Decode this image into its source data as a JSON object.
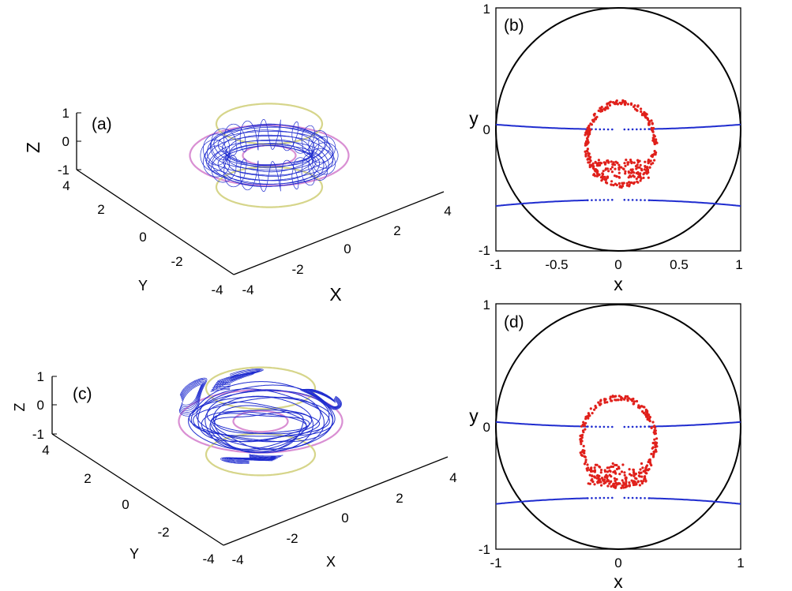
{
  "colors": {
    "trajectory": "#1f2ccf",
    "torus_yellow": "#d6d58a",
    "torus_pink": "#d98fd3",
    "section_points": "#e0201b",
    "section_curves": "#1f2ccf",
    "frame": "#000000"
  },
  "chart_data": [
    {
      "id": "a",
      "type": "line",
      "projection": "3d",
      "panel_label": "(a)",
      "xlabel": "X",
      "ylabel": "Y",
      "zlabel": "Z",
      "xlim": [
        -4,
        4
      ],
      "ylim": [
        -4,
        4
      ],
      "zlim": [
        -1,
        1
      ],
      "x_ticks": [
        "-4",
        "-2",
        "0",
        "2",
        "4"
      ],
      "y_ticks": [
        "-4",
        "-2",
        "0",
        "2",
        "4"
      ],
      "z_ticks": [
        "-1",
        "0",
        "1"
      ],
      "series": [
        {
          "role": "torus-guide-outer-ring",
          "color": "torus_pink",
          "radius": 3,
          "z": 0
        },
        {
          "role": "torus-guide-inner-ring",
          "color": "torus_pink",
          "radius": 1,
          "z": 0
        },
        {
          "role": "torus-guide-top-ring",
          "color": "torus_yellow",
          "radius": 2,
          "z": 1
        },
        {
          "role": "torus-guide-bottom-ring",
          "color": "torus_yellow",
          "radius": 2,
          "z": -1
        },
        {
          "role": "trajectory",
          "color": "trajectory",
          "tube_radius": 0.6,
          "winding": 22
        }
      ]
    },
    {
      "id": "b",
      "type": "scatter",
      "panel_label": "(b)",
      "xlabel": "x",
      "ylabel": "y",
      "xlim": [
        -1,
        1
      ],
      "ylim": [
        -1,
        1
      ],
      "x_ticks": [
        "-1",
        "-0.5",
        "0",
        "0.5",
        "1"
      ],
      "y_ticks": [
        "-1",
        "0",
        "1"
      ],
      "circle": {
        "center": [
          0,
          0
        ],
        "radius": 1
      },
      "blue_curves": [
        {
          "y_at_center": 0.0,
          "y_at_edge": 0.04
        },
        {
          "y_at_center": -0.58,
          "y_at_edge": -0.63
        }
      ],
      "red_ring": {
        "center": [
          0.02,
          -0.12
        ],
        "rx": 0.28,
        "ry": 0.34,
        "dense_bottom_band": [
          -0.25,
          -0.4
        ]
      }
    },
    {
      "id": "c",
      "type": "line",
      "projection": "3d",
      "panel_label": "(c)",
      "xlabel": "X",
      "ylabel": "Y",
      "zlabel": "Z",
      "xlim": [
        -4,
        4
      ],
      "ylim": [
        -4,
        4
      ],
      "zlim": [
        -1,
        1
      ],
      "x_ticks": [
        "-4",
        "-2",
        "0",
        "2",
        "4"
      ],
      "y_ticks": [
        "-4",
        "-2",
        "0",
        "2",
        "4"
      ],
      "z_ticks": [
        "-1",
        "0",
        "1"
      ],
      "series": [
        {
          "role": "torus-guide-outer-ring",
          "color": "torus_pink",
          "radius": 3,
          "z": 0
        },
        {
          "role": "torus-guide-inner-ring",
          "color": "torus_pink",
          "radius": 1,
          "z": 0
        },
        {
          "role": "torus-guide-top-ring",
          "color": "torus_yellow",
          "radius": 2,
          "z": 1
        },
        {
          "role": "torus-guide-bottom-ring",
          "color": "torus_yellow",
          "radius": 2,
          "z": -1
        },
        {
          "role": "trajectory",
          "color": "trajectory",
          "loops": 14,
          "excursions": 4
        }
      ]
    },
    {
      "id": "d",
      "type": "scatter",
      "panel_label": "(d)",
      "xlabel": "x",
      "ylabel": "y",
      "xlim": [
        -1,
        1
      ],
      "ylim": [
        -1,
        1
      ],
      "x_ticks": [
        "-1",
        "0",
        "1"
      ],
      "y_ticks": [
        "-1",
        "0",
        "1"
      ],
      "circle": {
        "center": [
          0,
          0
        ],
        "radius": 1
      },
      "blue_curves": [
        {
          "y_at_center": 0.0,
          "y_at_edge": 0.04
        },
        {
          "y_at_center": -0.58,
          "y_at_edge": -0.63
        }
      ],
      "red_ring": {
        "center": [
          0.0,
          -0.12
        ],
        "rx": 0.3,
        "ry": 0.36,
        "dense_bottom_band": [
          -0.3,
          -0.48
        ]
      }
    }
  ]
}
